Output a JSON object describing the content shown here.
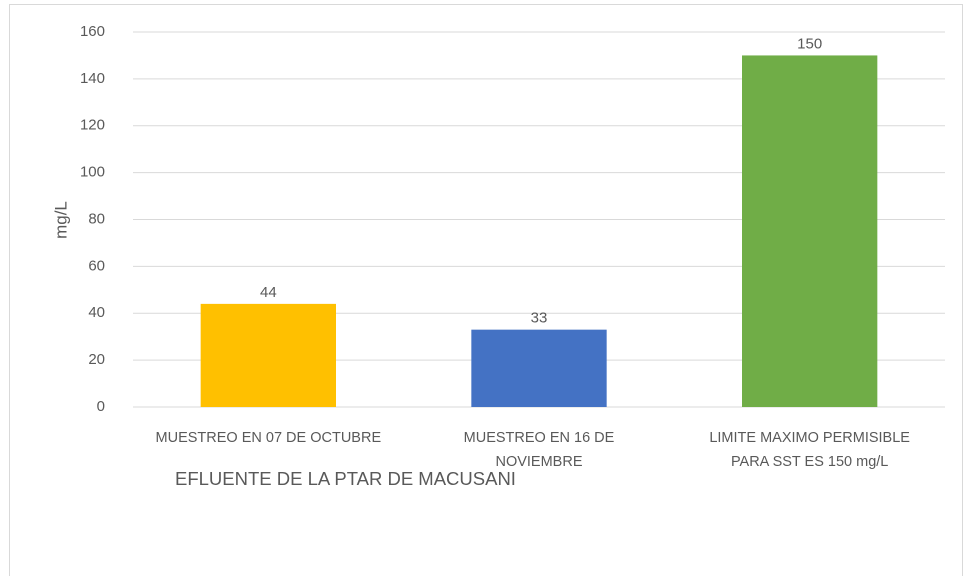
{
  "chart_data": {
    "type": "bar",
    "title": "EFLUENTE DE LA PTAR DE MACUSANI",
    "y_axis_label": "mg/L",
    "categories": [
      "MUESTREO EN 07 DE OCTUBRE",
      "MUESTREO EN 16 DE NOVIEMBRE",
      "LIMITE MAXIMO PERMISIBLE PARA SST ES 150 mg/L"
    ],
    "values": [
      44,
      33,
      150
    ],
    "colors": [
      "#ffc000",
      "#4472c4",
      "#70ad47"
    ],
    "ylim": [
      0,
      160
    ],
    "yticks": [
      0,
      20,
      40,
      60,
      80,
      100,
      120,
      140,
      160
    ],
    "grid": true
  }
}
